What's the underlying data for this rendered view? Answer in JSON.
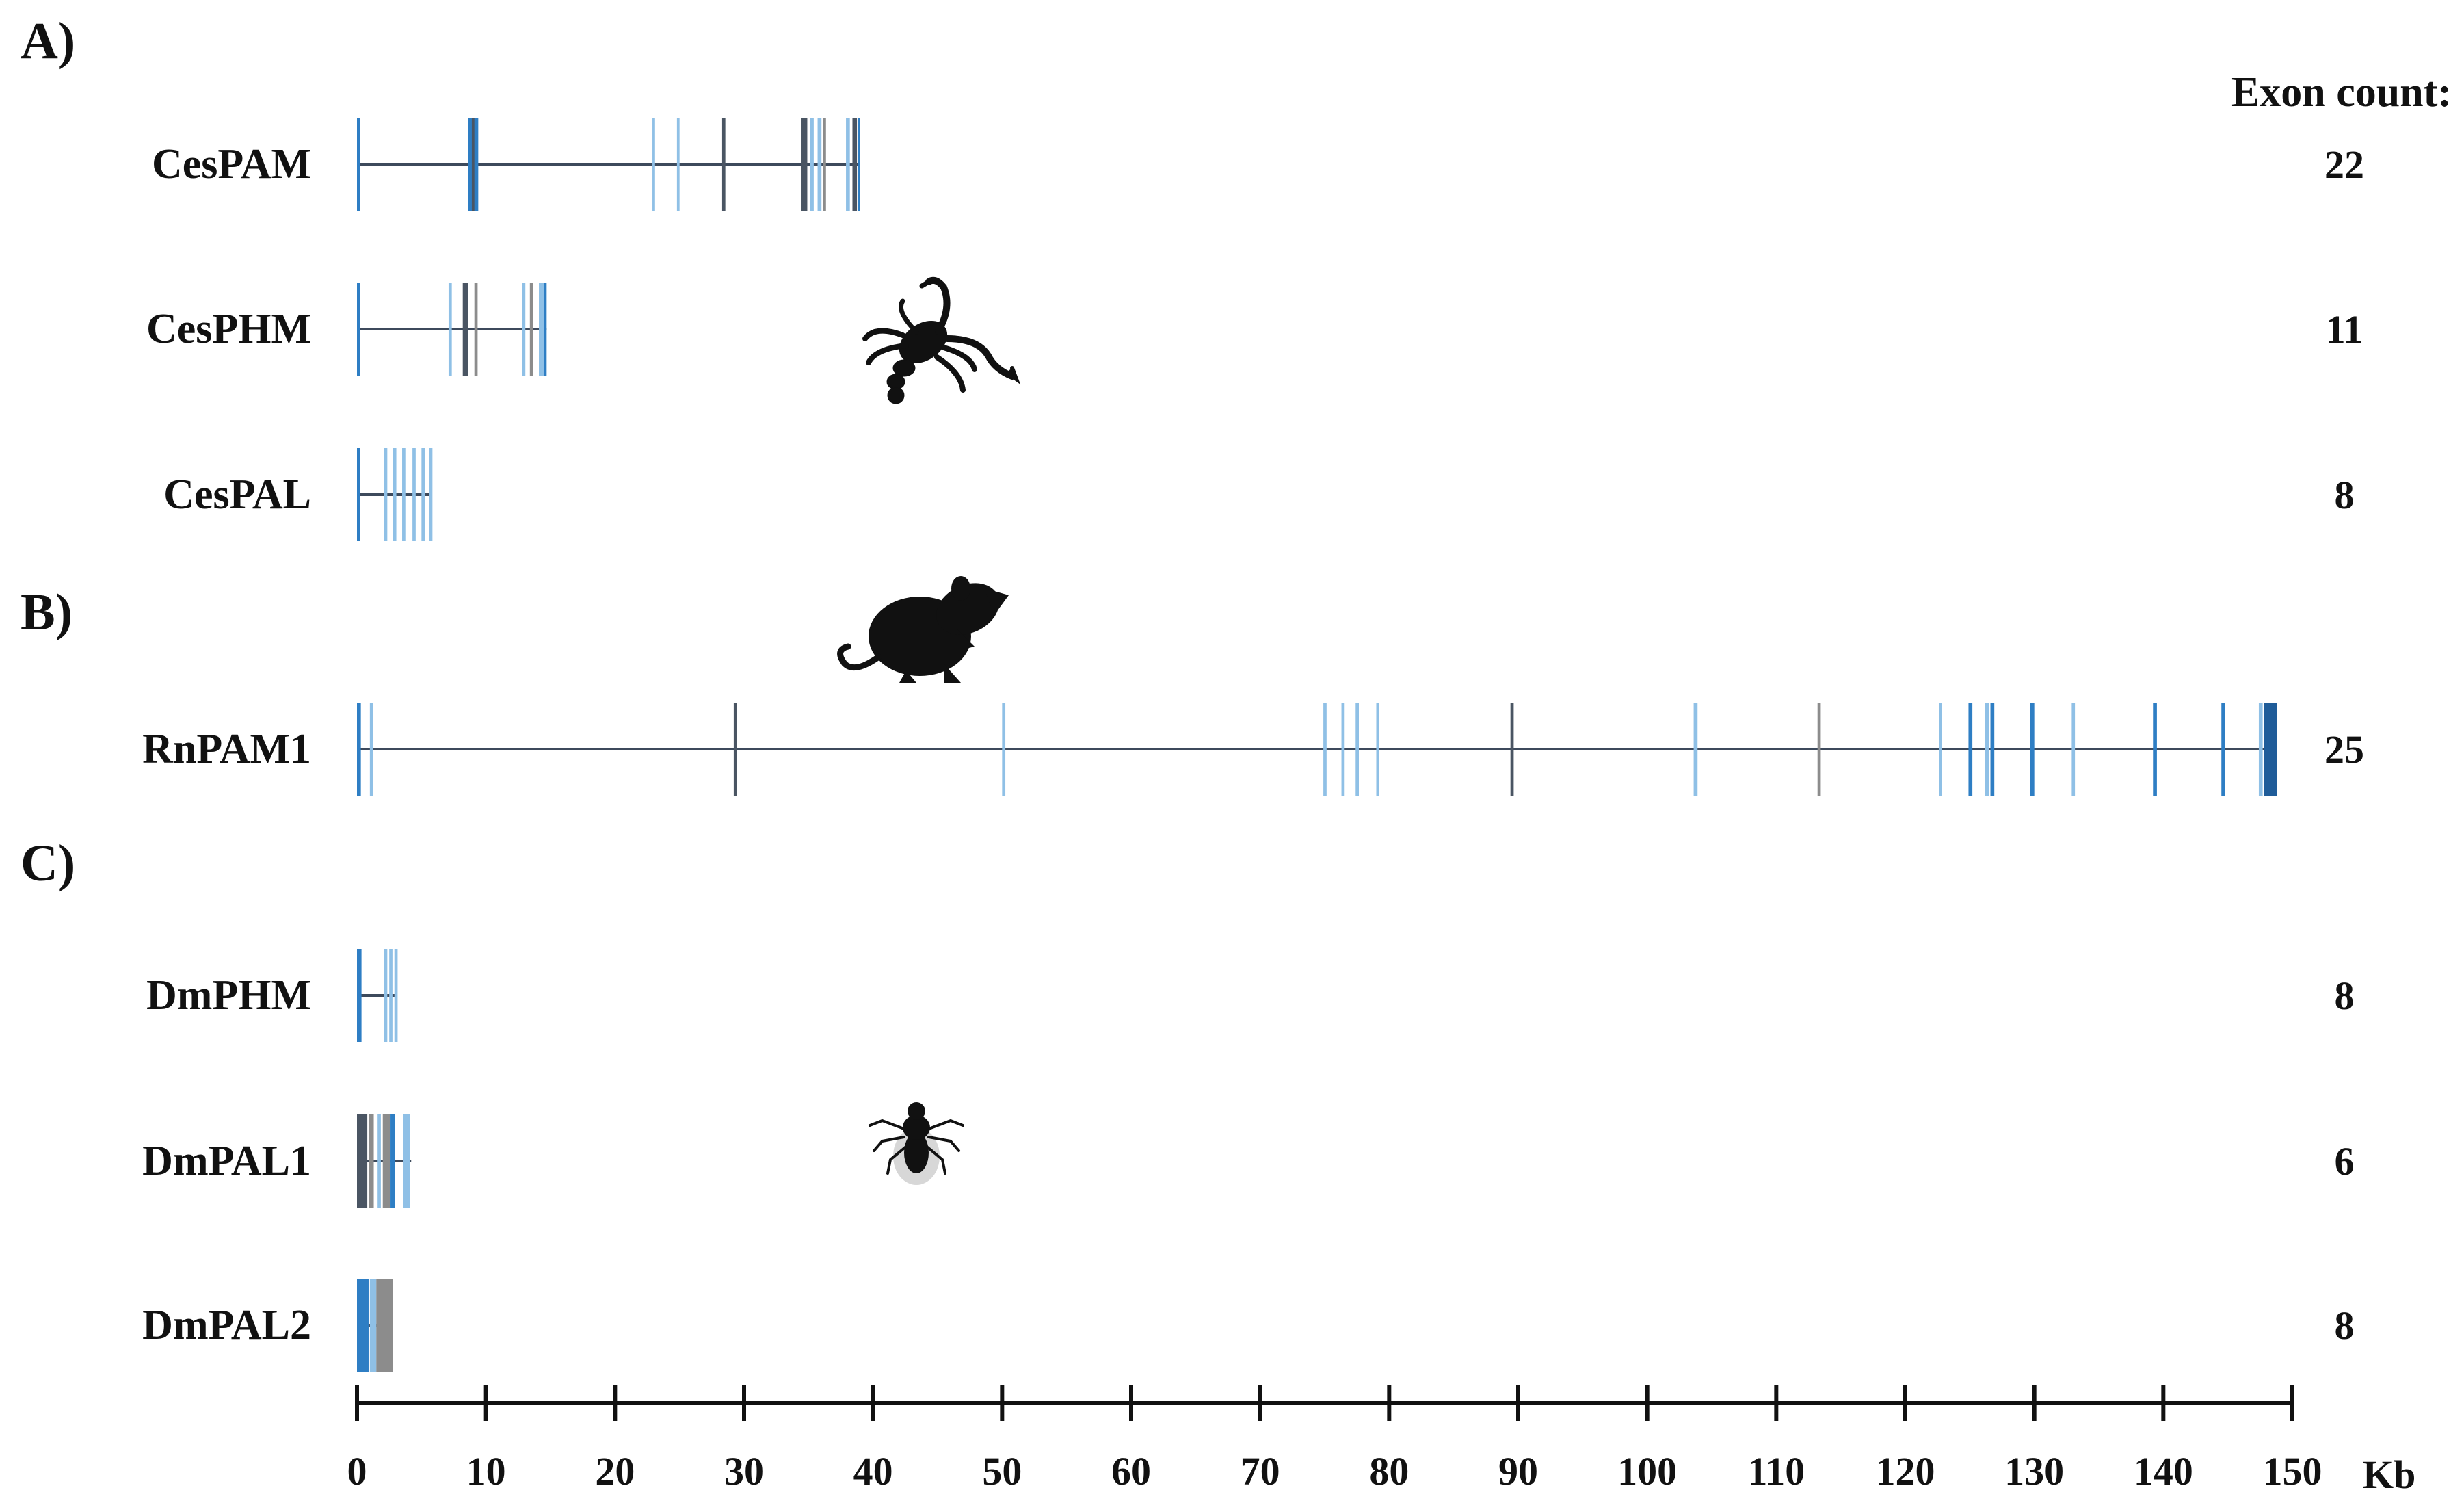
{
  "sections": [
    {
      "id": "A",
      "label": "A)"
    },
    {
      "id": "B",
      "label": "B)"
    },
    {
      "id": "C",
      "label": "C)"
    }
  ],
  "exon_count_header": "Exon count:",
  "axis": {
    "unit": "Kb",
    "min": 0,
    "max": 150,
    "ticks": [
      0,
      10,
      20,
      30,
      40,
      50,
      60,
      70,
      80,
      90,
      100,
      110,
      120,
      130,
      140,
      150
    ]
  },
  "colors": {
    "dark_blue": "#1f5c99",
    "mid_blue": "#2e7ec4",
    "light_blue": "#8fc0e6",
    "gray": "#8c8c8c",
    "slate": "#4a5563",
    "intron": "#3d4a5c",
    "text": "#111111"
  },
  "organism_icons": [
    {
      "section": "A",
      "name": "scorpion-icon"
    },
    {
      "section": "B",
      "name": "rat-icon"
    },
    {
      "section": "C",
      "name": "fly-icon"
    }
  ],
  "genes": [
    {
      "name": "CesPAM",
      "section": "A",
      "exon_count": "22",
      "length_kb": 39,
      "exons": [
        [
          0,
          0.25,
          "mid_blue"
        ],
        [
          8.6,
          0.8,
          "mid_blue"
        ],
        [
          8.9,
          0.2,
          "slate"
        ],
        [
          22.9,
          0.2,
          "light_blue"
        ],
        [
          24.8,
          0.2,
          "light_blue"
        ],
        [
          28.3,
          0.25,
          "slate"
        ],
        [
          34.4,
          0.5,
          "slate"
        ],
        [
          35.1,
          0.3,
          "light_blue"
        ],
        [
          35.7,
          0.3,
          "light_blue"
        ],
        [
          36.1,
          0.25,
          "gray"
        ],
        [
          37.9,
          0.3,
          "light_blue"
        ],
        [
          38.4,
          0.35,
          "slate"
        ],
        [
          38.8,
          0.2,
          "mid_blue"
        ]
      ]
    },
    {
      "name": "CesPHM",
      "section": "A",
      "exon_count": "11",
      "length_kb": 14.7,
      "exons": [
        [
          0,
          0.25,
          "mid_blue"
        ],
        [
          7.1,
          0.25,
          "light_blue"
        ],
        [
          8.2,
          0.4,
          "slate"
        ],
        [
          9.1,
          0.25,
          "gray"
        ],
        [
          12.8,
          0.25,
          "light_blue"
        ],
        [
          13.4,
          0.25,
          "gray"
        ],
        [
          14.1,
          0.55,
          "light_blue"
        ],
        [
          14.5,
          0.2,
          "mid_blue"
        ]
      ]
    },
    {
      "name": "CesPAL",
      "section": "A",
      "exon_count": "8",
      "length_kb": 5.8,
      "exons": [
        [
          0,
          0.25,
          "mid_blue"
        ],
        [
          2.1,
          0.25,
          "light_blue"
        ],
        [
          2.8,
          0.25,
          "light_blue"
        ],
        [
          3.5,
          0.25,
          "light_blue"
        ],
        [
          4.3,
          0.25,
          "light_blue"
        ],
        [
          5.0,
          0.25,
          "light_blue"
        ],
        [
          5.6,
          0.25,
          "light_blue"
        ]
      ]
    },
    {
      "name": "RnPAM1",
      "section": "B",
      "exon_count": "25",
      "length_kb": 148.7,
      "exons": [
        [
          0,
          0.3,
          "mid_blue"
        ],
        [
          1.0,
          0.25,
          "light_blue"
        ],
        [
          29.2,
          0.25,
          "slate"
        ],
        [
          50.0,
          0.25,
          "light_blue"
        ],
        [
          74.9,
          0.25,
          "light_blue"
        ],
        [
          76.3,
          0.25,
          "light_blue"
        ],
        [
          77.4,
          0.25,
          "light_blue"
        ],
        [
          79.0,
          0.2,
          "light_blue"
        ],
        [
          89.4,
          0.25,
          "slate"
        ],
        [
          103.6,
          0.3,
          "light_blue"
        ],
        [
          113.2,
          0.25,
          "gray"
        ],
        [
          122.6,
          0.25,
          "light_blue"
        ],
        [
          124.9,
          0.3,
          "mid_blue"
        ],
        [
          126.2,
          0.3,
          "light_blue"
        ],
        [
          126.6,
          0.3,
          "mid_blue"
        ],
        [
          129.7,
          0.3,
          "mid_blue"
        ],
        [
          132.9,
          0.25,
          "light_blue"
        ],
        [
          139.2,
          0.3,
          "mid_blue"
        ],
        [
          144.5,
          0.3,
          "mid_blue"
        ],
        [
          147.4,
          0.3,
          "light_blue"
        ],
        [
          147.8,
          1.0,
          "dark_blue"
        ]
      ]
    },
    {
      "name": "DmPHM",
      "section": "C",
      "exon_count": "8",
      "length_kb": 3.1,
      "exons": [
        [
          0,
          0.35,
          "mid_blue"
        ],
        [
          2.1,
          0.25,
          "light_blue"
        ],
        [
          2.5,
          0.25,
          "light_blue"
        ],
        [
          2.9,
          0.25,
          "light_blue"
        ]
      ]
    },
    {
      "name": "DmPAL1",
      "section": "C",
      "exon_count": "6",
      "length_kb": 4.2,
      "exons": [
        [
          0,
          0.8,
          "slate"
        ],
        [
          0.9,
          0.4,
          "gray"
        ],
        [
          1.6,
          0.25,
          "light_blue"
        ],
        [
          2.0,
          0.6,
          "gray"
        ],
        [
          2.6,
          0.35,
          "mid_blue"
        ],
        [
          3.6,
          0.5,
          "light_blue"
        ]
      ]
    },
    {
      "name": "DmPAL2",
      "section": "C",
      "exon_count": "8",
      "length_kb": 2.8,
      "exons": [
        [
          0,
          0.6,
          "mid_blue"
        ],
        [
          0.6,
          0.3,
          "mid_blue"
        ],
        [
          1.0,
          0.5,
          "light_blue"
        ],
        [
          1.5,
          1.3,
          "gray"
        ]
      ]
    }
  ]
}
